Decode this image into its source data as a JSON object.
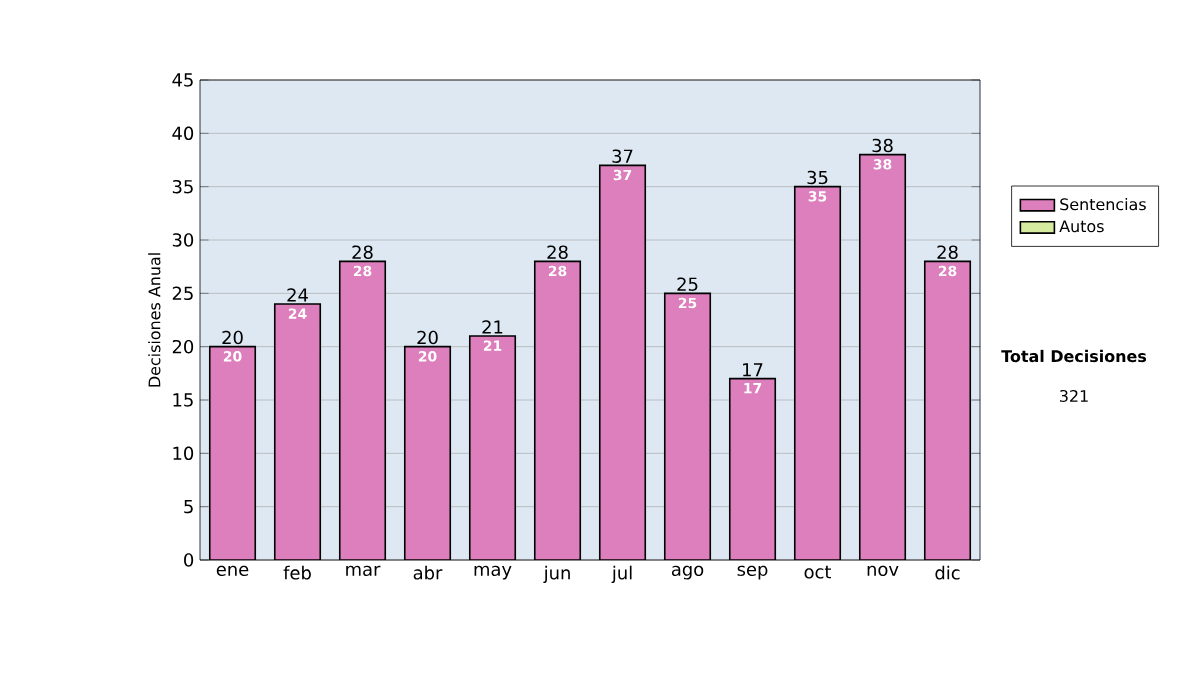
{
  "chart_data": {
    "type": "bar",
    "stacked": true,
    "ylabel": "Decisiones Anual",
    "categories": [
      "ene",
      "feb",
      "mar",
      "abr",
      "may",
      "jun",
      "jul",
      "ago",
      "sep",
      "oct",
      "nov",
      "dic"
    ],
    "series": [
      {
        "name": "Sentencias",
        "color": "#dd7fbd",
        "values": [
          20,
          24,
          28,
          20,
          21,
          28,
          37,
          25,
          17,
          35,
          38,
          28
        ],
        "value_labels": [
          "20",
          "24",
          "28",
          "20",
          "21",
          "28",
          "37",
          "25",
          "17",
          "35",
          "38",
          "28"
        ]
      },
      {
        "name": "Autos",
        "color": "#d6eba0",
        "values": [
          0,
          0,
          0,
          0,
          0,
          0,
          0,
          0,
          0,
          0,
          0,
          0
        ]
      }
    ],
    "totals": [
      "20",
      "24",
      "28",
      "20",
      "21",
      "28",
      "37",
      "25",
      "17",
      "35",
      "38",
      "28"
    ],
    "ylim": [
      0,
      45
    ],
    "yticks": [
      0,
      5,
      10,
      15,
      20,
      25,
      30,
      35,
      40,
      45
    ],
    "grid": "y",
    "legend": "right",
    "annotations": [
      "**Total Decisiones**",
      "321"
    ]
  }
}
